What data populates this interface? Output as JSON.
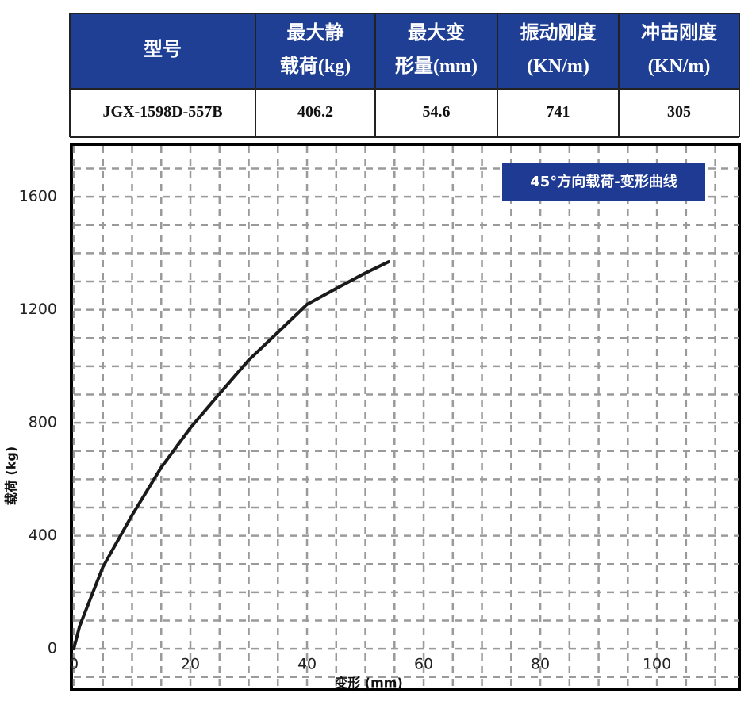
{
  "table": {
    "header": [
      [
        "型号"
      ],
      [
        "最大静",
        "载荷(kg)"
      ],
      [
        "最大变",
        "形量(mm)"
      ],
      [
        "振动刚度",
        "(KN/m)"
      ],
      [
        "冲击刚度",
        "(KN/m)"
      ]
    ],
    "rows": [
      [
        "JGX-1598D-557B",
        "406.2",
        "54.6",
        "741",
        "305"
      ]
    ]
  },
  "chart_data": {
    "type": "line",
    "title": "45°方向载荷-变形曲线",
    "x_label": "变形 (mm)",
    "y_label": "载荷 (kg)",
    "x": [
      0,
      1,
      5,
      10,
      15,
      20,
      25,
      30,
      35,
      40,
      45,
      50,
      54
    ],
    "series": [
      {
        "name": "载荷",
        "color": "#1a1a1a",
        "values": [
          0,
          80,
          290,
          473,
          642,
          782,
          903,
          1022,
          1120,
          1219,
          1275,
          1330,
          1370
        ]
      }
    ],
    "xlim": [
      0,
      114
    ],
    "xticks": [
      0,
      20,
      40,
      60,
      80,
      100
    ],
    "ylim": [
      -140,
      1780
    ],
    "yticks": [
      0,
      400,
      800,
      1200,
      1600
    ],
    "grid": true
  }
}
